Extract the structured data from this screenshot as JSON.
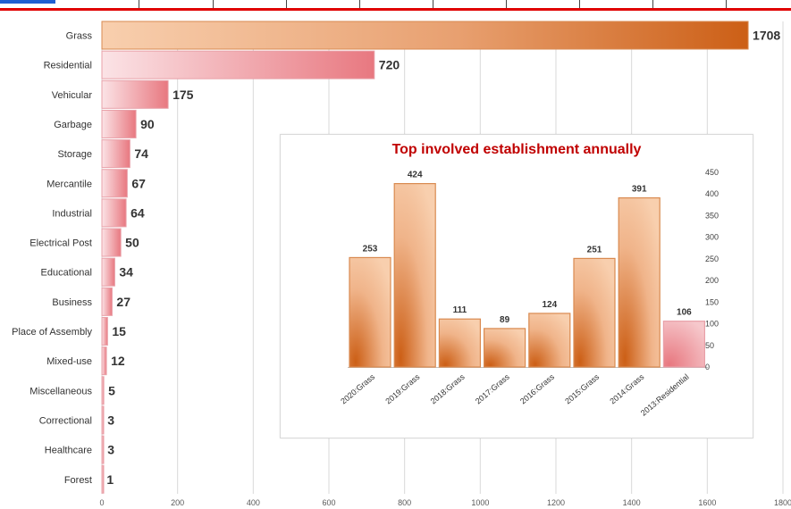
{
  "chart_data": [
    {
      "type": "bar",
      "orientation": "horizontal",
      "title": "",
      "categories": [
        "Grass",
        "Residential",
        "Vehicular",
        "Garbage",
        "Storage",
        "Mercantile",
        "Industrial",
        "Electrical Post",
        "Educational",
        "Business",
        "Place of Assembly",
        "Mixed-use",
        "Miscellaneous",
        "Correctional",
        "Healthcare",
        "Forest"
      ],
      "values": [
        1708,
        720,
        175,
        90,
        74,
        67,
        64,
        50,
        34,
        27,
        15,
        12,
        5,
        3,
        3,
        1
      ],
      "xlim": [
        0,
        1800
      ],
      "xticks": [
        0,
        200,
        400,
        600,
        800,
        1000,
        1200,
        1400,
        1600,
        1800
      ],
      "grid": "vertical",
      "colors": {
        "primary": "#d4691f",
        "secondary": "#e8808a"
      },
      "color_groups": [
        "orange",
        "pink",
        "pink",
        "pink",
        "pink",
        "pink",
        "pink",
        "pink",
        "pink",
        "pink",
        "pink",
        "pink",
        "pink",
        "pink",
        "pink",
        "pink"
      ]
    },
    {
      "type": "bar",
      "title": "Top involved establishment annually",
      "categories": [
        "2020:Grass",
        "2019:Grass",
        "2018:Grass",
        "2017:Grass",
        "2016:Grass",
        "2015:Grass",
        "2014:Grass",
        "2013:Residential"
      ],
      "values": [
        253,
        424,
        111,
        89,
        124,
        251,
        391,
        106
      ],
      "ylim": [
        0,
        450
      ],
      "yticks": [
        0,
        50,
        100,
        150,
        200,
        250,
        300,
        350,
        400,
        450
      ],
      "yaxis_position": "right",
      "grid": "none",
      "color_groups": [
        "orange",
        "orange",
        "orange",
        "orange",
        "orange",
        "orange",
        "orange",
        "pink"
      ],
      "colors": {
        "title": "#c00000",
        "primary": "#d4691f",
        "secondary": "#e8808a"
      }
    }
  ]
}
